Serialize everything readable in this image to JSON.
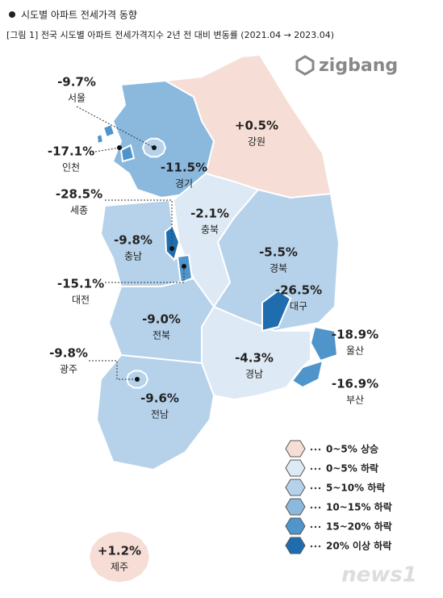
{
  "header": {
    "title": "시도별 아파트 전세가격 동향",
    "caption": "[그림 1] 전국 시도별 아파트 전세가격지수 2년 전 대비 변동률 (2021.04 → 2023.04)"
  },
  "brand": "zigbang",
  "watermark": "news1",
  "chart_data": {
    "type": "choropleth",
    "regions": [
      {
        "name": "서울",
        "value": -9.7,
        "value_label": "-9.7%",
        "color": "#b6d2ea"
      },
      {
        "name": "인천",
        "value": -17.1,
        "value_label": "-17.1%",
        "color": "#4f94ca"
      },
      {
        "name": "경기",
        "value": -11.5,
        "value_label": "-11.5%",
        "color": "#8bb9de"
      },
      {
        "name": "강원",
        "value": 0.5,
        "value_label": "+0.5%",
        "color": "#f6ddd6"
      },
      {
        "name": "세종",
        "value": -28.5,
        "value_label": "-28.5%",
        "color": "#1f6dae"
      },
      {
        "name": "충북",
        "value": -2.1,
        "value_label": "-2.1%",
        "color": "#dde9f4"
      },
      {
        "name": "충남",
        "value": -9.8,
        "value_label": "-9.8%",
        "color": "#b6d2ea"
      },
      {
        "name": "대전",
        "value": -15.1,
        "value_label": "-15.1%",
        "color": "#4f94ca"
      },
      {
        "name": "경북",
        "value": -5.5,
        "value_label": "-5.5%",
        "color": "#b6d2ea"
      },
      {
        "name": "대구",
        "value": -26.5,
        "value_label": "-26.5%",
        "color": "#1f6dae"
      },
      {
        "name": "울산",
        "value": -18.9,
        "value_label": "-18.9%",
        "color": "#4f94ca"
      },
      {
        "name": "부산",
        "value": -16.9,
        "value_label": "-16.9%",
        "color": "#4f94ca"
      },
      {
        "name": "경남",
        "value": -4.3,
        "value_label": "-4.3%",
        "color": "#dde9f4"
      },
      {
        "name": "전북",
        "value": -9.0,
        "value_label": "-9.0%",
        "color": "#b6d2ea"
      },
      {
        "name": "광주",
        "value": -9.8,
        "value_label": "-9.8%",
        "color": "#b6d2ea"
      },
      {
        "name": "전남",
        "value": -9.6,
        "value_label": "-9.6%",
        "color": "#b6d2ea"
      },
      {
        "name": "제주",
        "value": 1.2,
        "value_label": "+1.2%",
        "color": "#f6ddd6"
      }
    ],
    "legend": [
      {
        "label": "0~5% 상승",
        "color": "#f6ddd6"
      },
      {
        "label": "0~5% 하락",
        "color": "#dde9f4"
      },
      {
        "label": "5~10% 하락",
        "color": "#b6d2ea"
      },
      {
        "label": "10~15% 하락",
        "color": "#8bb9de"
      },
      {
        "label": "15~20% 하락",
        "color": "#4f94ca"
      },
      {
        "label": "20% 이상 하락",
        "color": "#1f6dae"
      }
    ]
  }
}
